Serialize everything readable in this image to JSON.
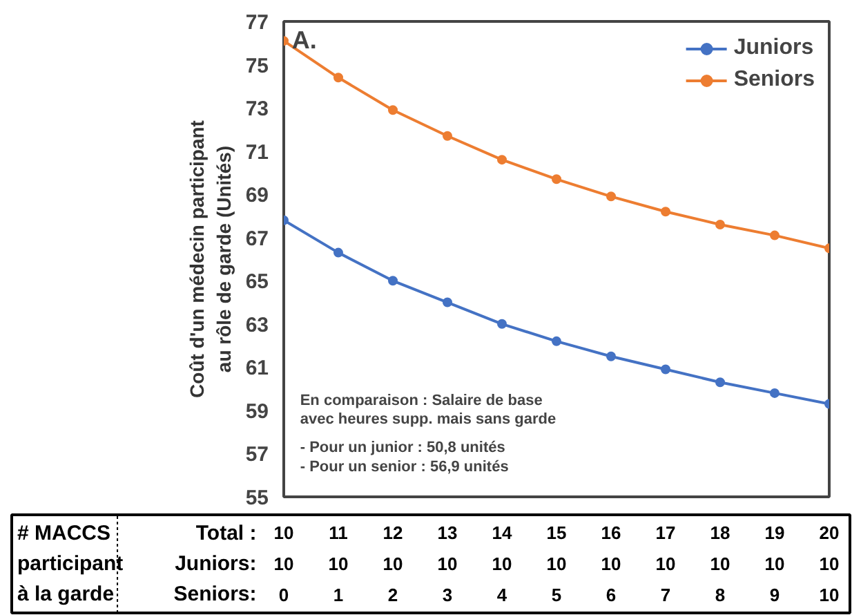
{
  "chart_data": {
    "type": "line",
    "ylabel": "Coût d'un médecin participant\nau rôle de garde (Unités)",
    "categories": [
      "10\n10\n0",
      "11\n10\n1",
      "12\n10\n2",
      "13\n10\n3",
      "14\n10\n4",
      "15\n10\n5",
      "16\n10\n6",
      "17\n10\n7",
      "18\n10\n8",
      "19\n10\n9",
      "20\n10\n10"
    ],
    "series": [
      {
        "name": "Juniors",
        "color": "#4472c4",
        "values": [
          67.8,
          66.3,
          65.0,
          64.0,
          63.0,
          62.2,
          61.5,
          60.9,
          60.3,
          59.8,
          59.3
        ]
      },
      {
        "name": "Seniors",
        "color": "#ed7d31",
        "values": [
          76.1,
          74.4,
          72.9,
          71.7,
          70.6,
          69.7,
          68.9,
          68.2,
          67.6,
          67.1,
          66.5
        ]
      }
    ],
    "ylim": [
      55,
      77
    ],
    "yticks": [
      55,
      57,
      59,
      61,
      63,
      65,
      67,
      69,
      71,
      73,
      75,
      77
    ],
    "grid": false,
    "legend": "top right",
    "marker": "circle",
    "line_style": "solid",
    "annotations": [
      "A.",
      "En comparaison : Salaire de base\n   avec heures supp. mais sans garde",
      "- Pour un junior : 50,8 unités\n- Pour un senior : 56,9 unités",
      "# MACCS\nparticipant\nà la garde",
      "Total :\nJuniors:\nSeniors:"
    ]
  }
}
